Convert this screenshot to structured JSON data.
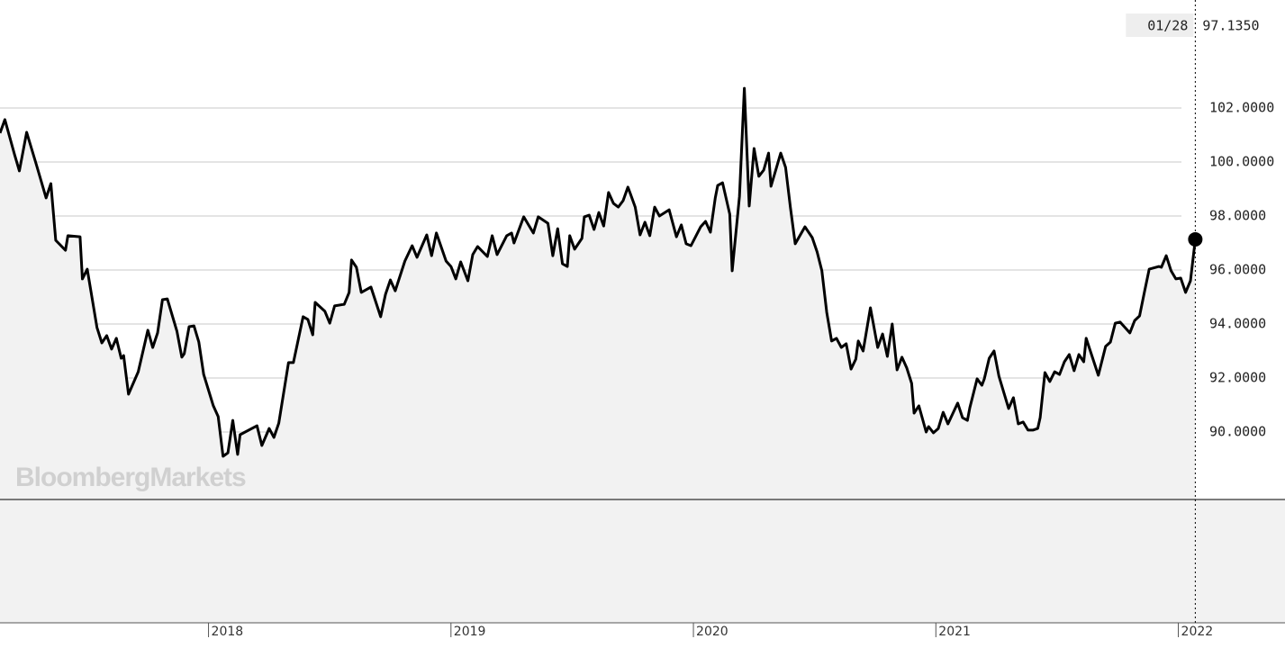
{
  "chart_data": {
    "type": "line",
    "watermark": "BloombergMarkets",
    "crosshair": {
      "date_label": "01/28",
      "value_label": "97.1350"
    },
    "color": "#000000",
    "fill": "#f2f2f2",
    "grid": true,
    "xlim": [
      2017.14,
      2022.44
    ],
    "ylim": [
      87.5,
      106
    ],
    "xticks": [
      2018,
      2019,
      2020,
      2021,
      2022
    ],
    "yticks": [
      {
        "value": 90,
        "label": "90.0000"
      },
      {
        "value": 92,
        "label": "92.0000"
      },
      {
        "value": 94,
        "label": "94.0000"
      },
      {
        "value": 96,
        "label": "96.0000"
      },
      {
        "value": 98,
        "label": "98.0000"
      },
      {
        "value": 100,
        "label": "100.0000"
      },
      {
        "value": 102,
        "label": "102.0000"
      }
    ],
    "x": [
      2017.14,
      2017.16,
      2017.2,
      2017.22,
      2017.25,
      2017.29,
      2017.33,
      2017.35,
      2017.37,
      2017.41,
      2017.42,
      2017.47,
      2017.48,
      2017.5,
      2017.54,
      2017.56,
      2017.58,
      2017.6,
      2017.62,
      2017.64,
      2017.65,
      2017.67,
      2017.71,
      2017.75,
      2017.77,
      2017.79,
      2017.81,
      2017.83,
      2017.87,
      2017.89,
      2017.9,
      2017.92,
      2017.94,
      2017.96,
      2017.98,
      2018.02,
      2018.04,
      2018.06,
      2018.08,
      2018.1,
      2018.12,
      2018.13,
      2018.2,
      2018.22,
      2018.25,
      2018.27,
      2018.29,
      2018.33,
      2018.35,
      2018.39,
      2018.41,
      2018.43,
      2018.44,
      2018.48,
      2018.5,
      2018.52,
      2018.56,
      2018.58,
      2018.59,
      2018.61,
      2018.63,
      2018.67,
      2018.71,
      2018.73,
      2018.75,
      2018.77,
      2018.81,
      2018.84,
      2018.86,
      2018.9,
      2018.92,
      2018.94,
      2018.98,
      2019.0,
      2019.02,
      2019.04,
      2019.07,
      2019.09,
      2019.11,
      2019.15,
      2019.17,
      2019.19,
      2019.23,
      2019.25,
      2019.26,
      2019.3,
      2019.34,
      2019.36,
      2019.4,
      2019.42,
      2019.44,
      2019.46,
      2019.48,
      2019.49,
      2019.51,
      2019.54,
      2019.55,
      2019.57,
      2019.59,
      2019.61,
      2019.63,
      2019.65,
      2019.67,
      2019.69,
      2019.71,
      2019.73,
      2019.74,
      2019.76,
      2019.78,
      2019.8,
      2019.82,
      2019.84,
      2019.86,
      2019.9,
      2019.93,
      2019.95,
      2019.97,
      2019.99,
      2020.03,
      2020.05,
      2020.07,
      2020.09,
      2020.1,
      2020.12,
      2020.15,
      2020.16,
      2020.19,
      2020.21,
      2020.23,
      2020.25,
      2020.27,
      2020.29,
      2020.31,
      2020.32,
      2020.36,
      2020.38,
      2020.4,
      2020.42,
      2020.46,
      2020.49,
      2020.51,
      2020.53,
      2020.55,
      2020.57,
      2020.59,
      2020.61,
      2020.63,
      2020.65,
      2020.67,
      2020.68,
      2020.7,
      2020.73,
      2020.76,
      2020.78,
      2020.8,
      2020.82,
      2020.84,
      2020.86,
      2020.88,
      2020.9,
      2020.91,
      2020.93,
      2020.96,
      2020.97,
      2020.99,
      2021.01,
      2021.03,
      2021.05,
      2021.09,
      2021.11,
      2021.13,
      2021.14,
      2021.17,
      2021.19,
      2021.2,
      2021.22,
      2021.24,
      2021.26,
      2021.3,
      2021.32,
      2021.34,
      2021.36,
      2021.38,
      2021.4,
      2021.42,
      2021.43,
      2021.45,
      2021.47,
      2021.49,
      2021.51,
      2021.53,
      2021.55,
      2021.57,
      2021.59,
      2021.61,
      2021.62,
      2021.67,
      2021.7,
      2021.72,
      2021.74,
      2021.76,
      2021.8,
      2021.82,
      2021.84,
      2021.86,
      2021.88,
      2021.92,
      2021.93,
      2021.95,
      2021.97,
      2021.99,
      2022.01,
      2022.03,
      2022.05,
      2022.07
    ],
    "values": [
      101.07,
      101.57,
      100.27,
      99.67,
      101.1,
      99.9,
      98.67,
      99.2,
      97.1,
      96.73,
      97.27,
      97.23,
      95.67,
      96.03,
      93.87,
      93.3,
      93.57,
      93.07,
      93.47,
      92.73,
      92.83,
      91.4,
      92.23,
      93.77,
      93.13,
      93.67,
      94.9,
      94.93,
      93.73,
      92.77,
      92.9,
      93.9,
      93.93,
      93.33,
      92.13,
      90.97,
      90.57,
      89.1,
      89.23,
      90.43,
      89.17,
      89.9,
      90.23,
      89.5,
      90.13,
      89.8,
      90.33,
      92.57,
      92.57,
      94.27,
      94.17,
      93.6,
      94.8,
      94.47,
      94.03,
      94.67,
      94.73,
      95.17,
      96.37,
      96.1,
      95.17,
      95.37,
      94.27,
      95.1,
      95.63,
      95.23,
      96.33,
      96.9,
      96.47,
      97.3,
      96.53,
      97.37,
      96.33,
      96.13,
      95.67,
      96.3,
      95.6,
      96.57,
      96.87,
      96.5,
      97.27,
      96.57,
      97.27,
      97.37,
      97.0,
      97.97,
      97.37,
      97.97,
      97.73,
      96.53,
      97.53,
      96.23,
      96.13,
      97.27,
      96.77,
      97.17,
      97.97,
      98.03,
      97.5,
      98.13,
      97.63,
      98.87,
      98.47,
      98.33,
      98.57,
      99.07,
      98.83,
      98.33,
      97.3,
      97.77,
      97.27,
      98.33,
      98.0,
      98.23,
      97.23,
      97.67,
      96.97,
      96.9,
      97.6,
      97.8,
      97.4,
      98.67,
      99.13,
      99.23,
      98.07,
      95.97,
      98.73,
      102.73,
      98.37,
      100.5,
      99.47,
      99.7,
      100.33,
      99.1,
      100.33,
      99.8,
      98.33,
      96.97,
      97.6,
      97.2,
      96.67,
      95.97,
      94.43,
      93.37,
      93.47,
      93.13,
      93.27,
      92.33,
      92.7,
      93.37,
      93.0,
      94.6,
      93.13,
      93.63,
      92.8,
      94.0,
      92.3,
      92.77,
      92.37,
      91.8,
      90.7,
      90.97,
      90.0,
      90.2,
      89.97,
      90.13,
      90.73,
      90.3,
      91.07,
      90.53,
      90.43,
      90.9,
      91.97,
      91.73,
      91.97,
      92.73,
      93.0,
      92.07,
      90.87,
      91.27,
      90.3,
      90.37,
      90.07,
      90.07,
      90.13,
      90.53,
      92.2,
      91.87,
      92.23,
      92.13,
      92.6,
      92.87,
      92.27,
      92.87,
      92.6,
      93.47,
      92.1,
      93.17,
      93.33,
      94.03,
      94.07,
      93.67,
      94.13,
      94.3,
      95.17,
      96.03,
      96.13,
      96.1,
      96.53,
      95.97,
      95.67,
      95.7,
      95.17,
      95.6,
      97.135
    ]
  }
}
